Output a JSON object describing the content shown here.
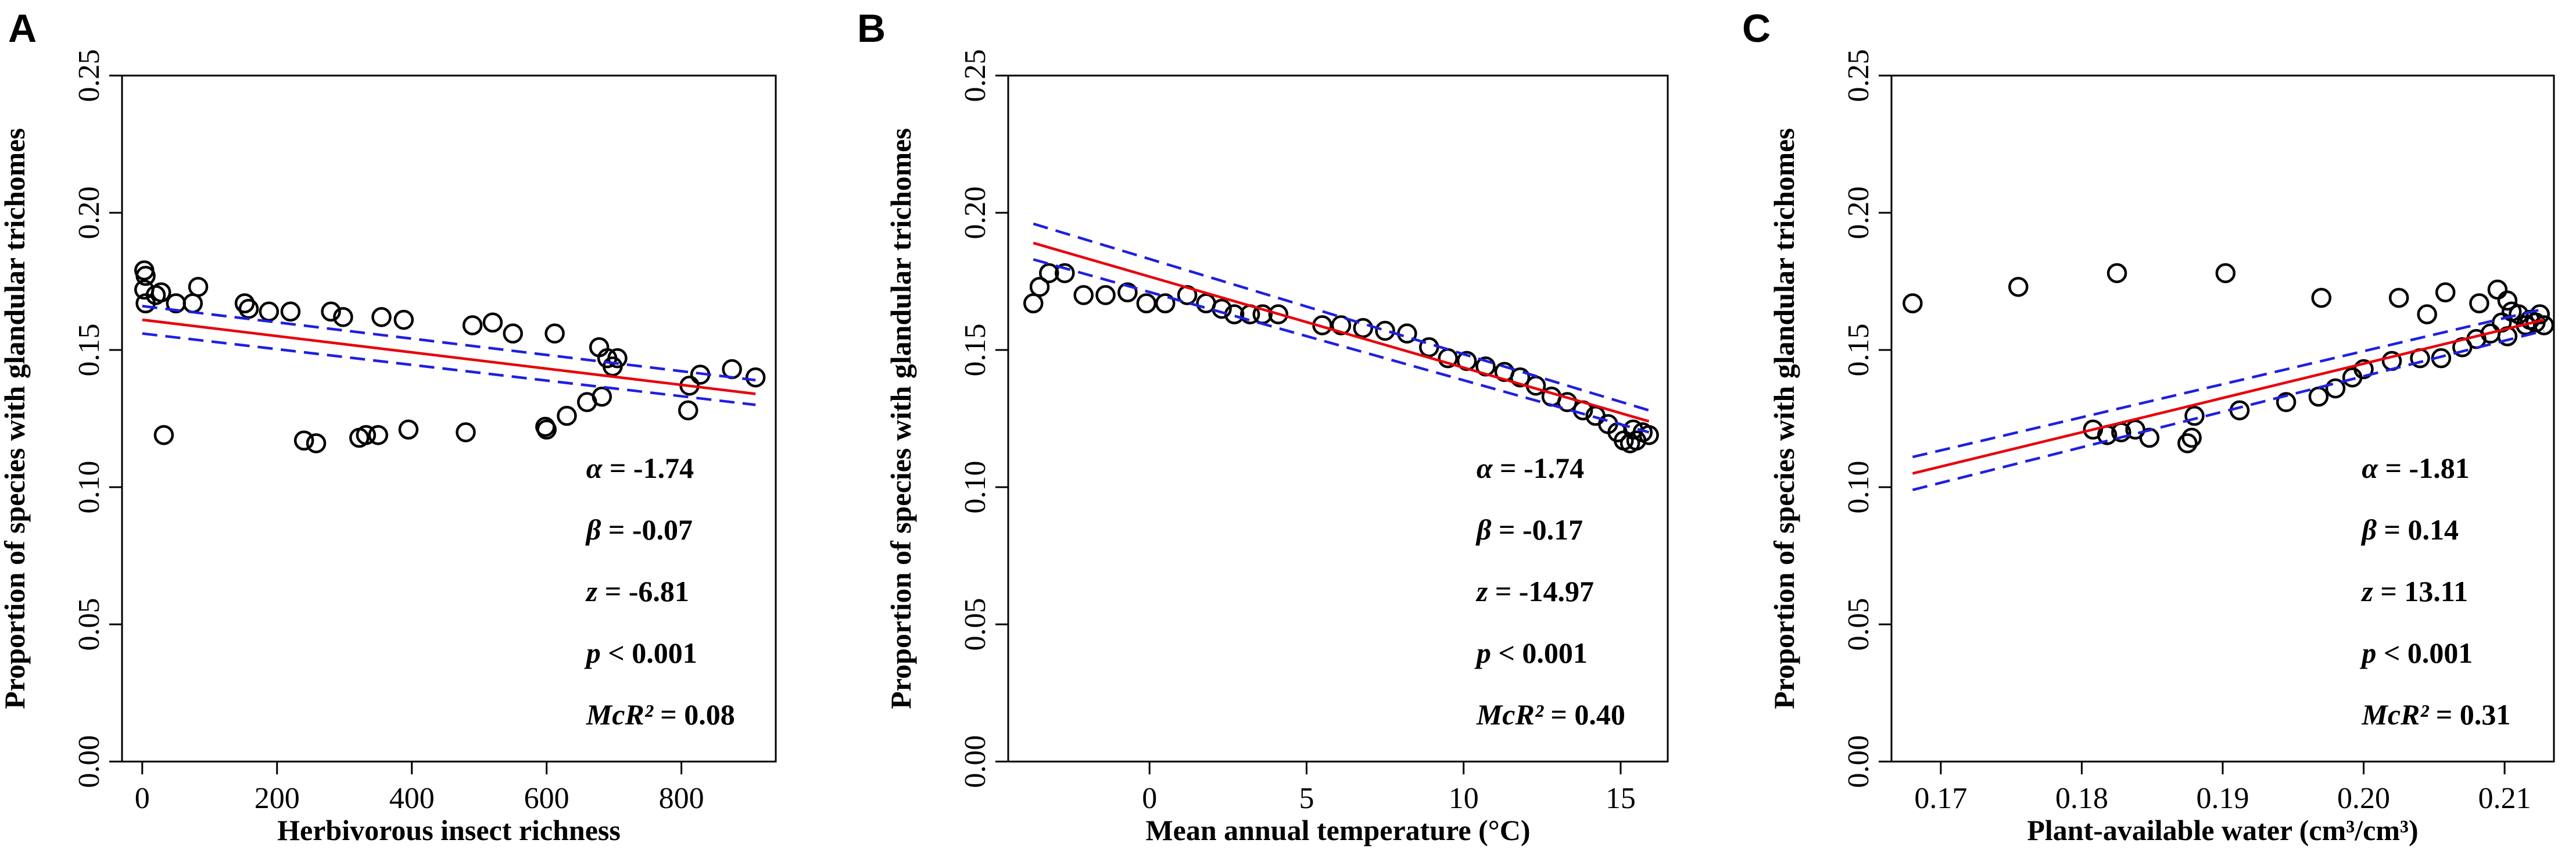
{
  "figure": {
    "panel_letters": [
      "A",
      "B",
      "C"
    ]
  },
  "colors": {
    "points": "#000000",
    "fit_line": "#e8000b",
    "ci_line": "#1f1fe0",
    "text": "#000000"
  },
  "chart_data": [
    {
      "type": "scatter",
      "panel": "A",
      "xlabel": "Herbivorous insect richness",
      "ylabel": "Proportion of species with glandular trichomes",
      "xlim": [
        -30,
        940
      ],
      "ylim": [
        0.0,
        0.25
      ],
      "xticks": [
        0,
        200,
        400,
        600,
        800
      ],
      "xtick_labels": [
        "0",
        "200",
        "400",
        "600",
        "800"
      ],
      "yticks": [
        0.0,
        0.05,
        0.1,
        0.15,
        0.2,
        0.25
      ],
      "ytick_labels": [
        "0.00",
        "0.05",
        "0.10",
        "0.15",
        "0.20",
        "0.25"
      ],
      "points": [
        [
          3,
          0.179
        ],
        [
          5,
          0.177
        ],
        [
          3,
          0.172
        ],
        [
          5,
          0.167
        ],
        [
          20,
          0.17
        ],
        [
          28,
          0.171
        ],
        [
          32,
          0.119
        ],
        [
          50,
          0.167
        ],
        [
          75,
          0.167
        ],
        [
          83,
          0.173
        ],
        [
          152,
          0.167
        ],
        [
          158,
          0.165
        ],
        [
          188,
          0.164
        ],
        [
          220,
          0.164
        ],
        [
          240,
          0.117
        ],
        [
          258,
          0.116
        ],
        [
          280,
          0.164
        ],
        [
          298,
          0.162
        ],
        [
          322,
          0.118
        ],
        [
          332,
          0.119
        ],
        [
          350,
          0.119
        ],
        [
          355,
          0.162
        ],
        [
          388,
          0.161
        ],
        [
          395,
          0.121
        ],
        [
          480,
          0.12
        ],
        [
          490,
          0.159
        ],
        [
          520,
          0.16
        ],
        [
          550,
          0.156
        ],
        [
          598,
          0.122
        ],
        [
          600,
          0.121
        ],
        [
          612,
          0.156
        ],
        [
          630,
          0.126
        ],
        [
          660,
          0.131
        ],
        [
          678,
          0.151
        ],
        [
          682,
          0.133
        ],
        [
          690,
          0.147
        ],
        [
          698,
          0.144
        ],
        [
          705,
          0.147
        ],
        [
          810,
          0.128
        ],
        [
          812,
          0.137
        ],
        [
          828,
          0.141
        ],
        [
          875,
          0.143
        ],
        [
          910,
          0.14
        ]
      ],
      "fit_line": {
        "x": [
          0,
          910
        ],
        "y": [
          0.161,
          0.134
        ]
      },
      "ci_upper": {
        "x": [
          0,
          910
        ],
        "y": [
          0.166,
          0.139
        ]
      },
      "ci_lower": {
        "x": [
          0,
          910
        ],
        "y": [
          0.156,
          0.13
        ]
      },
      "stats": [
        {
          "label": "α",
          "value": " = -1.74"
        },
        {
          "label": "β",
          "value": " = -0.07"
        },
        {
          "label": "z",
          "value": " = -6.81"
        },
        {
          "label": "p",
          "value": " < 0.001"
        },
        {
          "label": "McR²",
          "value": " = 0.08"
        }
      ]
    },
    {
      "type": "scatter",
      "panel": "B",
      "xlabel": "Mean annual temperature (°C)",
      "ylabel": "Proportion of species with glandular trichomes",
      "xlim": [
        -4.5,
        16.5
      ],
      "ylim": [
        0.0,
        0.25
      ],
      "xticks": [
        0,
        5,
        10,
        15
      ],
      "xtick_labels": [
        "0",
        "5",
        "10",
        "15"
      ],
      "yticks": [
        0.0,
        0.05,
        0.1,
        0.15,
        0.2,
        0.25
      ],
      "ytick_labels": [
        "0.00",
        "0.05",
        "0.10",
        "0.15",
        "0.20",
        "0.25"
      ],
      "points": [
        [
          -3.7,
          0.167
        ],
        [
          -3.5,
          0.173
        ],
        [
          -3.2,
          0.178
        ],
        [
          -2.7,
          0.178
        ],
        [
          -2.1,
          0.17
        ],
        [
          -1.4,
          0.17
        ],
        [
          -0.7,
          0.171
        ],
        [
          -0.1,
          0.167
        ],
        [
          0.5,
          0.167
        ],
        [
          1.2,
          0.17
        ],
        [
          1.8,
          0.167
        ],
        [
          2.3,
          0.165
        ],
        [
          2.7,
          0.163
        ],
        [
          3.2,
          0.163
        ],
        [
          3.6,
          0.163
        ],
        [
          4.1,
          0.163
        ],
        [
          5.5,
          0.159
        ],
        [
          6.1,
          0.159
        ],
        [
          6.8,
          0.158
        ],
        [
          7.5,
          0.157
        ],
        [
          8.2,
          0.156
        ],
        [
          8.9,
          0.151
        ],
        [
          9.5,
          0.147
        ],
        [
          10.1,
          0.146
        ],
        [
          10.7,
          0.144
        ],
        [
          11.3,
          0.142
        ],
        [
          11.8,
          0.14
        ],
        [
          12.3,
          0.137
        ],
        [
          12.8,
          0.133
        ],
        [
          13.3,
          0.131
        ],
        [
          13.8,
          0.128
        ],
        [
          14.2,
          0.126
        ],
        [
          14.6,
          0.123
        ],
        [
          14.9,
          0.12
        ],
        [
          15.1,
          0.117
        ],
        [
          15.3,
          0.116
        ],
        [
          15.5,
          0.117
        ],
        [
          15.7,
          0.12
        ],
        [
          15.9,
          0.119
        ],
        [
          15.4,
          0.121
        ]
      ],
      "fit_line": {
        "x": [
          -3.7,
          15.9
        ],
        "y": [
          0.189,
          0.124
        ]
      },
      "ci_upper": {
        "x": [
          -3.7,
          15.9
        ],
        "y": [
          0.196,
          0.128
        ]
      },
      "ci_lower": {
        "x": [
          -3.7,
          15.9
        ],
        "y": [
          0.183,
          0.12
        ]
      },
      "stats": [
        {
          "label": "α",
          "value": " = -1.74"
        },
        {
          "label": "β",
          "value": " = -0.17"
        },
        {
          "label": "z",
          "value": " = -14.97"
        },
        {
          "label": "p",
          "value": " < 0.001"
        },
        {
          "label": "McR²",
          "value": " = 0.40"
        }
      ]
    },
    {
      "type": "scatter",
      "panel": "C",
      "xlabel": "Plant-available water (cm³/cm³)",
      "ylabel": "Proportion of species with glandular trichomes",
      "xlim": [
        0.1665,
        0.2135
      ],
      "ylim": [
        0.0,
        0.25
      ],
      "xticks": [
        0.17,
        0.18,
        0.19,
        0.2,
        0.21
      ],
      "xtick_labels": [
        "0.17",
        "0.18",
        "0.19",
        "0.20",
        "0.21"
      ],
      "yticks": [
        0.0,
        0.05,
        0.1,
        0.15,
        0.2,
        0.25
      ],
      "ytick_labels": [
        "0.00",
        "0.05",
        "0.10",
        "0.15",
        "0.20",
        "0.25"
      ],
      "points": [
        [
          0.168,
          0.167
        ],
        [
          0.1755,
          0.173
        ],
        [
          0.1825,
          0.178
        ],
        [
          0.1902,
          0.178
        ],
        [
          0.197,
          0.169
        ],
        [
          0.2025,
          0.169
        ],
        [
          0.2058,
          0.171
        ],
        [
          0.2082,
          0.167
        ],
        [
          0.2095,
          0.172
        ],
        [
          0.2102,
          0.168
        ],
        [
          0.1808,
          0.121
        ],
        [
          0.1818,
          0.119
        ],
        [
          0.1828,
          0.12
        ],
        [
          0.1838,
          0.121
        ],
        [
          0.1848,
          0.118
        ],
        [
          0.1875,
          0.116
        ],
        [
          0.1878,
          0.118
        ],
        [
          0.188,
          0.126
        ],
        [
          0.1912,
          0.128
        ],
        [
          0.1945,
          0.131
        ],
        [
          0.1968,
          0.133
        ],
        [
          0.198,
          0.136
        ],
        [
          0.1992,
          0.14
        ],
        [
          0.2,
          0.143
        ],
        [
          0.202,
          0.146
        ],
        [
          0.204,
          0.147
        ],
        [
          0.2055,
          0.147
        ],
        [
          0.207,
          0.151
        ],
        [
          0.208,
          0.154
        ],
        [
          0.209,
          0.156
        ],
        [
          0.2098,
          0.16
        ],
        [
          0.2105,
          0.164
        ],
        [
          0.211,
          0.163
        ],
        [
          0.2118,
          0.161
        ],
        [
          0.2122,
          0.16
        ],
        [
          0.2125,
          0.163
        ],
        [
          0.2128,
          0.159
        ],
        [
          0.2102,
          0.155
        ],
        [
          0.2115,
          0.159
        ],
        [
          0.2045,
          0.163
        ]
      ],
      "fit_line": {
        "x": [
          0.168,
          0.2128
        ],
        "y": [
          0.105,
          0.161
        ]
      },
      "ci_upper": {
        "x": [
          0.168,
          0.2128
        ],
        "y": [
          0.111,
          0.165
        ]
      },
      "ci_lower": {
        "x": [
          0.168,
          0.2128
        ],
        "y": [
          0.099,
          0.157
        ]
      },
      "stats": [
        {
          "label": "α",
          "value": " = -1.81"
        },
        {
          "label": "β",
          "value": " = 0.14"
        },
        {
          "label": "z",
          "value": " = 13.11"
        },
        {
          "label": "p",
          "value": " < 0.001"
        },
        {
          "label": "McR²",
          "value": " = 0.31"
        }
      ]
    }
  ]
}
